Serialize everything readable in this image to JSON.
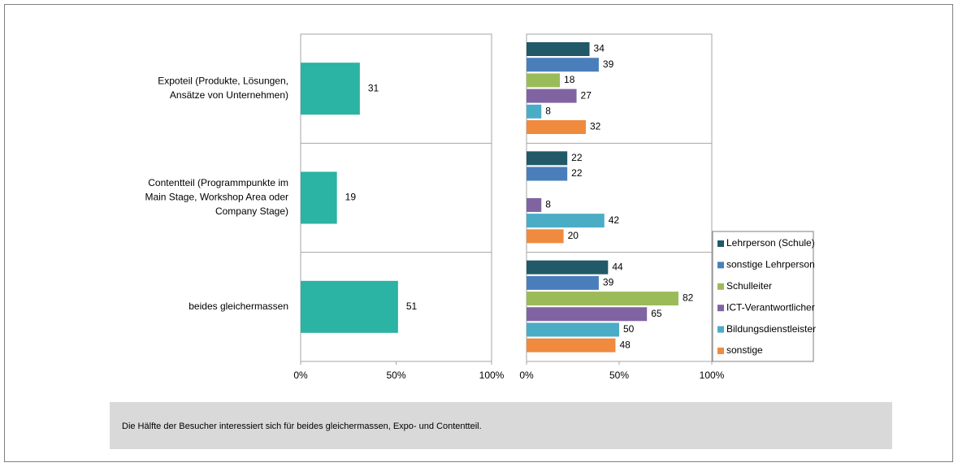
{
  "chart_data": [
    {
      "type": "hbar",
      "categories": [
        [
          "Expoteil (Produkte, Lösungen,",
          "Ansätze von Unternehmen)"
        ],
        [
          "Contentteil (Programmpunkte im",
          "Main Stage, Workshop Area oder",
          "Company Stage)"
        ],
        [
          "beides gleichermassen"
        ]
      ],
      "values": [
        31,
        19,
        51
      ],
      "color": "#2bb3a3",
      "xlim": [
        0,
        100
      ],
      "xticks": [
        {
          "value": 0,
          "label": "0%"
        },
        {
          "value": 50,
          "label": "50%"
        },
        {
          "value": 100,
          "label": "100%"
        }
      ]
    },
    {
      "type": "grouped_hbar",
      "series": [
        {
          "name": "Lehrperson (Schule)",
          "color": "#215968",
          "values": [
            34,
            22,
            44
          ]
        },
        {
          "name": "sonstige Lehrperson",
          "color": "#4a7ebb",
          "values": [
            39,
            22,
            39
          ]
        },
        {
          "name": "Schulleiter",
          "color": "#9bbb59",
          "values": [
            18,
            null,
            82
          ]
        },
        {
          "name": "ICT-Verantwortlicher",
          "color": "#8064a2",
          "values": [
            27,
            8,
            65
          ]
        },
        {
          "name": "Bildungsdienstleister",
          "color": "#4bacc6",
          "values": [
            8,
            42,
            50
          ]
        },
        {
          "name": "sonstige",
          "color": "#f08a3e",
          "values": [
            32,
            20,
            48
          ]
        }
      ],
      "xlim": [
        0,
        100
      ],
      "xticks": [
        {
          "value": 0,
          "label": "0%"
        },
        {
          "value": 50,
          "label": "50%"
        },
        {
          "value": 100,
          "label": "100%"
        }
      ],
      "legend": "lower right"
    }
  ],
  "caption": "Die Hälfte der Besucher interessiert sich für beides gleichermassen, Expo- und Contentteil."
}
